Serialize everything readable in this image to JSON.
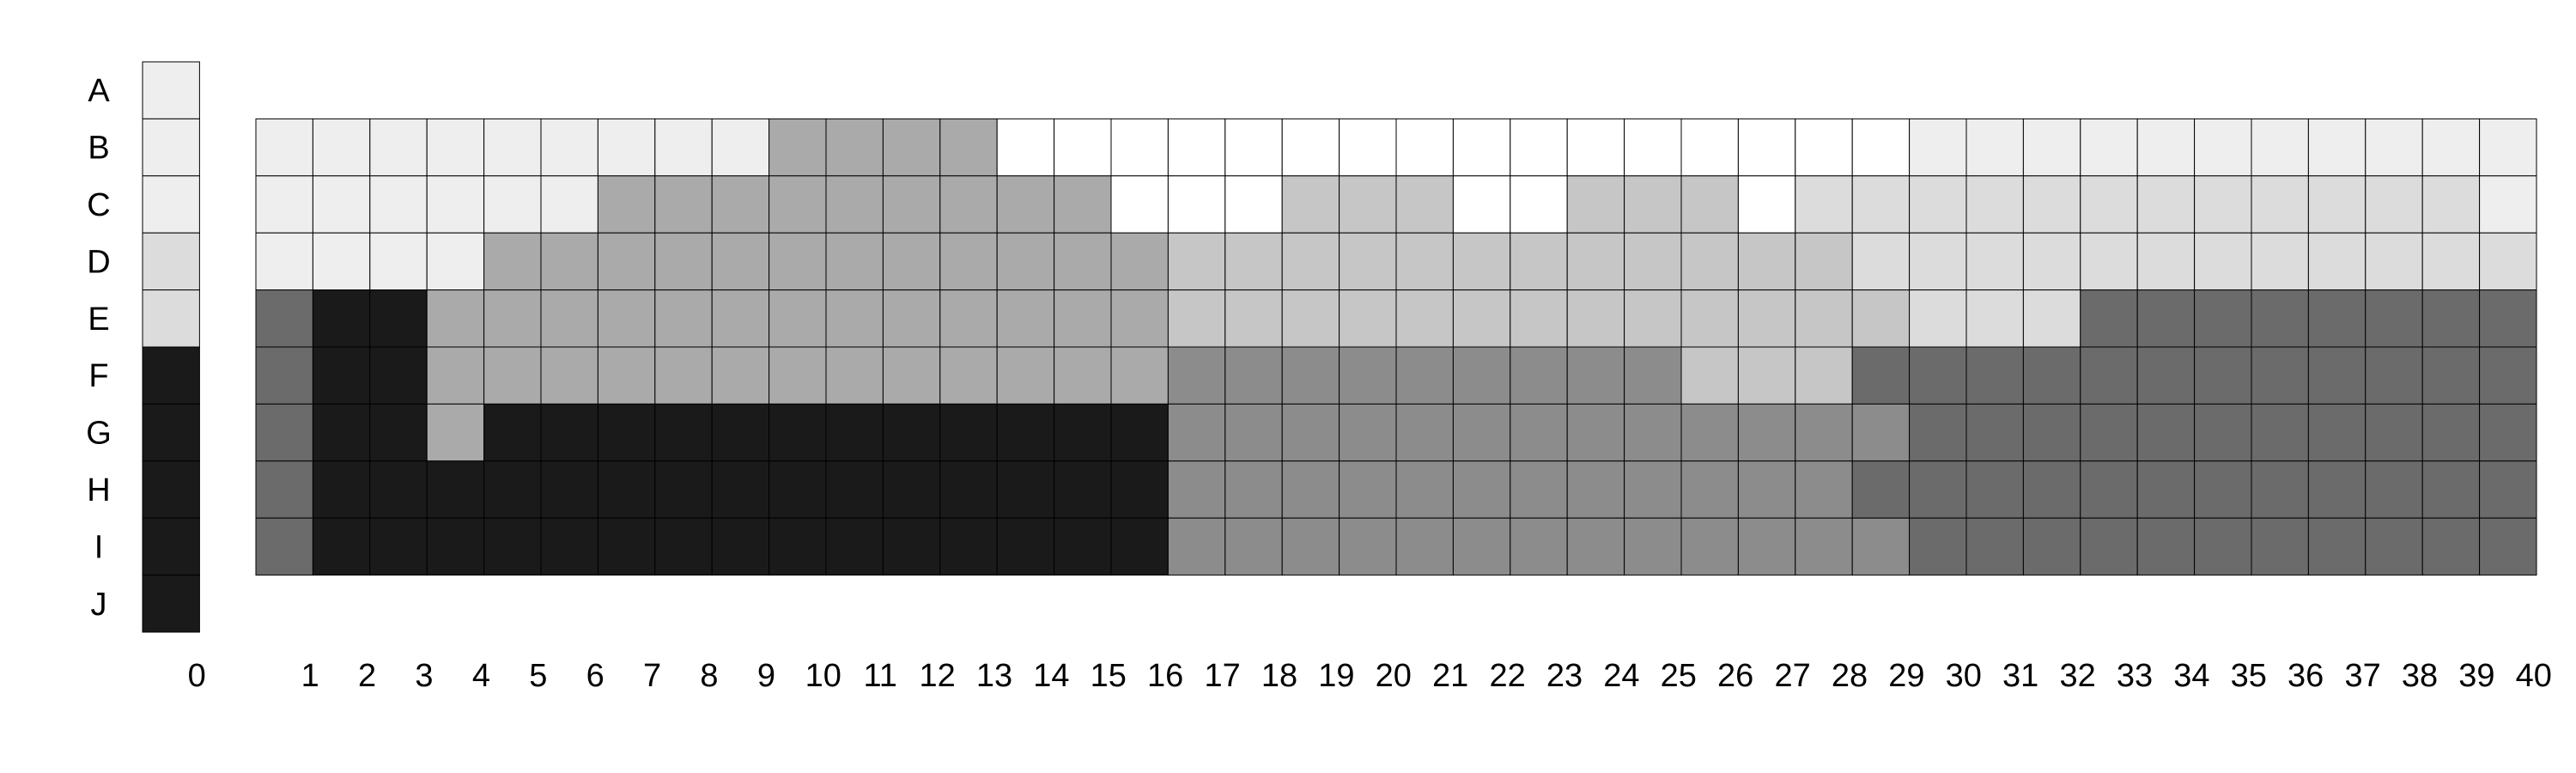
{
  "chart_data": {
    "type": "heatmap",
    "title": "",
    "xlabel": "",
    "ylabel": "",
    "rows": [
      "A",
      "B",
      "C",
      "D",
      "E",
      "F",
      "G",
      "H",
      "I",
      "J"
    ],
    "columns": [
      "0",
      "1",
      "2",
      "3",
      "4",
      "5",
      "6",
      "7",
      "8",
      "9",
      "10",
      "11",
      "12",
      "13",
      "14",
      "15",
      "16",
      "17",
      "18",
      "19",
      "20",
      "21",
      "22",
      "23",
      "24",
      "25",
      "26",
      "27",
      "28",
      "29",
      "30",
      "31",
      "32",
      "33",
      "34",
      "35",
      "36",
      "37",
      "38",
      "39",
      "40"
    ],
    "reference_column": {
      "column": "0",
      "values": [
        1,
        1,
        1,
        2,
        2,
        7,
        7,
        7,
        7,
        7
      ]
    },
    "main_grid_rows": [
      "B",
      "C",
      "D",
      "E",
      "F",
      "G",
      "H",
      "I"
    ],
    "main_grid_columns_start": 1,
    "main_grid": [
      [
        1,
        1,
        1,
        1,
        1,
        1,
        1,
        1,
        1,
        4,
        4,
        4,
        4,
        0,
        0,
        0,
        0,
        0,
        0,
        0,
        0,
        0,
        0,
        0,
        0,
        0,
        0,
        0,
        0,
        1,
        1,
        1,
        1,
        1,
        1,
        1,
        1,
        1,
        1,
        1
      ],
      [
        1,
        1,
        1,
        1,
        1,
        1,
        4,
        4,
        4,
        4,
        4,
        4,
        4,
        4,
        4,
        0,
        0,
        0,
        3,
        3,
        3,
        0,
        0,
        3,
        3,
        3,
        0,
        2,
        2,
        2,
        2,
        2,
        2,
        2,
        2,
        2,
        2,
        2,
        2,
        1
      ],
      [
        1,
        1,
        1,
        1,
        4,
        4,
        4,
        4,
        4,
        4,
        4,
        4,
        4,
        4,
        4,
        4,
        3,
        3,
        3,
        3,
        3,
        3,
        3,
        3,
        3,
        3,
        3,
        3,
        2,
        2,
        2,
        2,
        2,
        2,
        2,
        2,
        2,
        2,
        2,
        2
      ],
      [
        6,
        7,
        7,
        4,
        4,
        4,
        4,
        4,
        4,
        4,
        4,
        4,
        4,
        4,
        4,
        4,
        3,
        3,
        3,
        3,
        3,
        3,
        3,
        3,
        3,
        3,
        3,
        3,
        3,
        2,
        2,
        2,
        6,
        6,
        6,
        6,
        6,
        6,
        6,
        6
      ],
      [
        6,
        7,
        7,
        4,
        4,
        4,
        4,
        4,
        4,
        4,
        4,
        4,
        4,
        4,
        4,
        4,
        5,
        5,
        5,
        5,
        5,
        5,
        5,
        5,
        5,
        3,
        3,
        3,
        6,
        6,
        6,
        6,
        6,
        6,
        6,
        6,
        6,
        6,
        6,
        6
      ],
      [
        6,
        7,
        7,
        4,
        7,
        7,
        7,
        7,
        7,
        7,
        7,
        7,
        7,
        7,
        7,
        7,
        5,
        5,
        5,
        5,
        5,
        5,
        5,
        5,
        5,
        5,
        5,
        5,
        5,
        6,
        6,
        6,
        6,
        6,
        6,
        6,
        6,
        6,
        6,
        6
      ],
      [
        6,
        7,
        7,
        7,
        7,
        7,
        7,
        7,
        7,
        7,
        7,
        7,
        7,
        7,
        7,
        7,
        5,
        5,
        5,
        5,
        5,
        5,
        5,
        5,
        5,
        5,
        5,
        5,
        6,
        6,
        6,
        6,
        6,
        6,
        6,
        6,
        6,
        6,
        6,
        6
      ],
      [
        6,
        7,
        7,
        7,
        7,
        7,
        7,
        7,
        7,
        7,
        7,
        7,
        7,
        7,
        7,
        7,
        5,
        5,
        5,
        5,
        5,
        5,
        5,
        5,
        5,
        5,
        5,
        5,
        5,
        6,
        6,
        6,
        6,
        6,
        6,
        6,
        6,
        6,
        6,
        6
      ]
    ],
    "colors": [
      "#ffffff",
      "#eeeeee",
      "#dcdcdc",
      "#c6c6c6",
      "#aaaaaa",
      "#8c8c8c",
      "#6b6b6b",
      "#1a1a1a"
    ],
    "grid_line_color": "#000000",
    "legend": "none"
  }
}
